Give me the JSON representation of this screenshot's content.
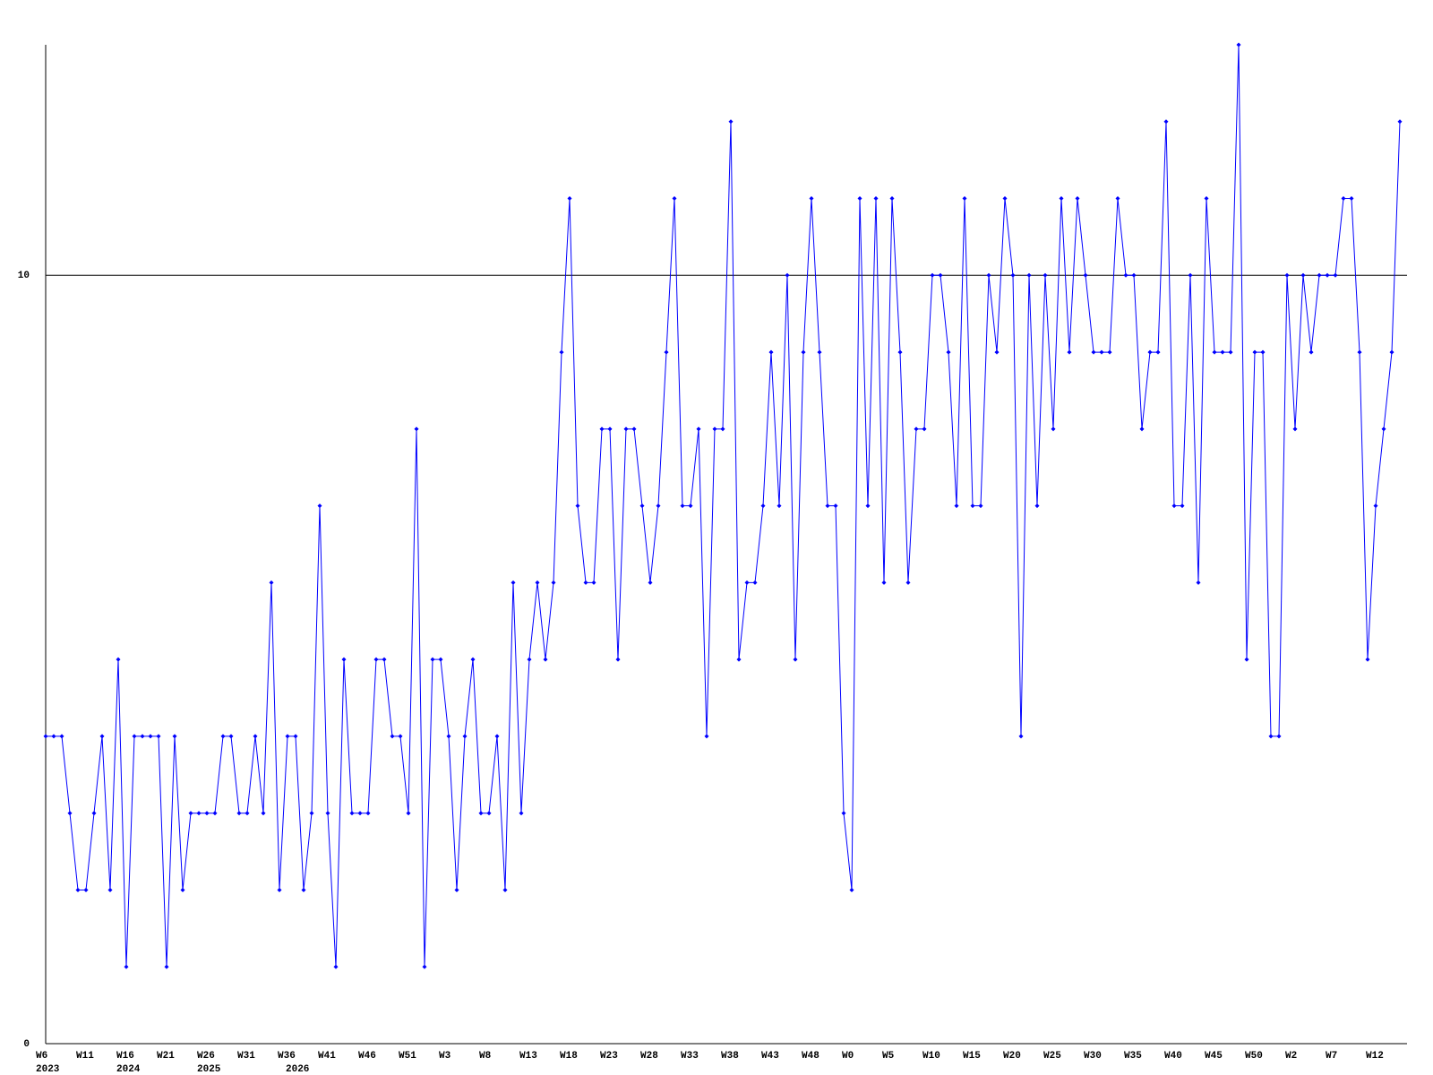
{
  "chart_data": {
    "type": "line",
    "color": "#0000ff",
    "categories": [
      "W6",
      null,
      null,
      null,
      null,
      "W11",
      null,
      null,
      null,
      null,
      "W16",
      null,
      null,
      null,
      null,
      "W21",
      null,
      null,
      null,
      null,
      "W26",
      null,
      null,
      null,
      null,
      "W31",
      null,
      null,
      null,
      null,
      "W36",
      null,
      null,
      null,
      null,
      "W41",
      null,
      null,
      null,
      null,
      "W46",
      null,
      null,
      null,
      null,
      "W51",
      null,
      null,
      null,
      null,
      "W3",
      null,
      null,
      null,
      null,
      "W8",
      null,
      null,
      null,
      null,
      "W13",
      null,
      null,
      null,
      null,
      "W18",
      null,
      null,
      null,
      null,
      "W23",
      null,
      null,
      null,
      null,
      "W28",
      null,
      null,
      null,
      null,
      "W33",
      null,
      null,
      null,
      null,
      "W38",
      null,
      null,
      null,
      null,
      "W43",
      null,
      null,
      null,
      null,
      "W48",
      null,
      null,
      null,
      null,
      "W0",
      null,
      null,
      null,
      null,
      "W5",
      null,
      null,
      null,
      null,
      "W10",
      null,
      null,
      null,
      null,
      "W15",
      null,
      null,
      null,
      null,
      "W20",
      null,
      null,
      null,
      null,
      "W25",
      null,
      null,
      null,
      null,
      "W30",
      null,
      null,
      null,
      null,
      "W35",
      null,
      null,
      null,
      null,
      "W40",
      null,
      null,
      null,
      null,
      "W45",
      null,
      null,
      null,
      null,
      "W50",
      null,
      null,
      null,
      null,
      "W2",
      null,
      null,
      null,
      null,
      "W7",
      null,
      null,
      null,
      null,
      "W12",
      null,
      null,
      null
    ],
    "year_labels": [
      "2023",
      null,
      null,
      null,
      null,
      null,
      null,
      null,
      null,
      null,
      "2024",
      null,
      null,
      null,
      null,
      null,
      null,
      null,
      null,
      null,
      "2025",
      null,
      null,
      null,
      null,
      null,
      null,
      null,
      null,
      null,
      null,
      "2026",
      null,
      null,
      null,
      null,
      null,
      null,
      null,
      null,
      null,
      null,
      null,
      null,
      null,
      null,
      null,
      null,
      null,
      null,
      null,
      null,
      null,
      null,
      null,
      null,
      null,
      null,
      null,
      null,
      null,
      null,
      null,
      null,
      null,
      null,
      null,
      null,
      null,
      null,
      null,
      null,
      null,
      null,
      null,
      null,
      null,
      null,
      null,
      null,
      null,
      null,
      null,
      null,
      null,
      null,
      null,
      null,
      null,
      null,
      null,
      null,
      null,
      null,
      null,
      null,
      null,
      null,
      null,
      null,
      null,
      null,
      null,
      null,
      null,
      null,
      null,
      null,
      null,
      null,
      null,
      null,
      null,
      null,
      null,
      null,
      null,
      null,
      null,
      null,
      null,
      null,
      null,
      null,
      null,
      null,
      null,
      null,
      null,
      null,
      null,
      null,
      null,
      null,
      null,
      null,
      null,
      null,
      null,
      null,
      null,
      null,
      null,
      null,
      null,
      null,
      null,
      null,
      null,
      null,
      null,
      null,
      null,
      null,
      null,
      null,
      null,
      null,
      null,
      null,
      null,
      null,
      null,
      null,
      null,
      null,
      null,
      null,
      null
    ],
    "values": [
      4,
      4,
      4,
      3,
      2,
      2,
      3,
      4,
      2,
      5,
      1,
      4,
      4,
      4,
      4,
      1,
      4,
      2,
      3,
      3,
      3,
      3,
      4,
      4,
      3,
      3,
      4,
      3,
      6,
      2,
      4,
      4,
      2,
      3,
      7,
      3,
      1,
      5,
      3,
      3,
      3,
      5,
      5,
      4,
      4,
      3,
      8,
      1,
      5,
      5,
      4,
      2,
      4,
      5,
      3,
      3,
      4,
      2,
      6,
      3,
      5,
      6,
      5,
      6,
      9,
      11,
      7,
      6,
      6,
      8,
      8,
      5,
      8,
      8,
      7,
      6,
      7,
      9,
      11,
      7,
      7,
      8,
      4,
      8,
      8,
      12,
      5,
      6,
      6,
      7,
      9,
      7,
      10,
      5,
      9,
      11,
      9,
      7,
      7,
      3,
      2,
      11,
      7,
      11,
      6,
      11,
      9,
      6,
      8,
      8,
      10,
      10,
      9,
      7,
      11,
      7,
      7,
      10,
      9,
      11,
      10,
      4,
      10,
      7,
      10,
      8,
      11,
      9,
      11,
      10,
      9,
      9,
      9,
      11,
      10,
      10,
      8,
      9,
      9,
      12,
      7,
      7,
      10,
      6,
      11,
      9,
      9,
      9,
      13,
      5,
      9,
      9,
      4,
      4,
      10,
      8,
      10,
      9,
      10,
      10,
      10,
      11,
      11,
      9,
      5,
      7,
      8,
      9,
      12
    ],
    "ylim": [
      0,
      13
    ],
    "yticks": [
      0,
      10
    ],
    "grid": true
  }
}
